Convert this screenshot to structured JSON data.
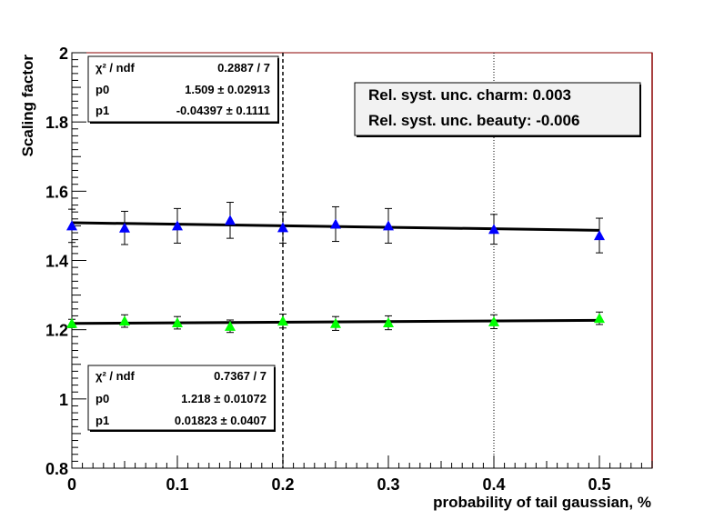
{
  "chart_data": {
    "type": "scatter",
    "xlabel": "probability of tail gaussian, %",
    "ylabel": "Scaling factor",
    "xlim": [
      0,
      0.55
    ],
    "ylim": [
      0.8,
      2.0
    ],
    "x_ticks": [
      "0",
      "0.1",
      "0.2",
      "0.3",
      "0.4",
      "0.5"
    ],
    "y_ticks": [
      "0.8",
      "1",
      "1.2",
      "1.4",
      "1.6",
      "1.8",
      "2"
    ],
    "grid": false,
    "vertical_lines": [
      {
        "x": 0.2,
        "style": "dashed"
      },
      {
        "x": 0.4,
        "style": "dotted"
      }
    ],
    "series": [
      {
        "color": "#0000ff",
        "marker": "triangle",
        "points": [
          {
            "x": 0.0,
            "y": 1.5,
            "err": 0.048
          },
          {
            "x": 0.05,
            "y": 1.494,
            "err": 0.048
          },
          {
            "x": 0.1,
            "y": 1.5,
            "err": 0.05
          },
          {
            "x": 0.15,
            "y": 1.516,
            "err": 0.052
          },
          {
            "x": 0.2,
            "y": 1.495,
            "err": 0.045
          },
          {
            "x": 0.25,
            "y": 1.505,
            "err": 0.05
          },
          {
            "x": 0.3,
            "y": 1.5,
            "err": 0.05
          },
          {
            "x": 0.4,
            "y": 1.49,
            "err": 0.043
          },
          {
            "x": 0.5,
            "y": 1.472,
            "err": 0.05
          }
        ],
        "fit": {
          "p0": 1.509,
          "p1": -0.04397
        }
      },
      {
        "color": "#00ff00",
        "marker": "triangle",
        "points": [
          {
            "x": 0.0,
            "y": 1.218,
            "err": 0.012
          },
          {
            "x": 0.05,
            "y": 1.225,
            "err": 0.018
          },
          {
            "x": 0.1,
            "y": 1.22,
            "err": 0.018
          },
          {
            "x": 0.15,
            "y": 1.21,
            "err": 0.018
          },
          {
            "x": 0.2,
            "y": 1.225,
            "err": 0.02
          },
          {
            "x": 0.25,
            "y": 1.218,
            "err": 0.02
          },
          {
            "x": 0.3,
            "y": 1.22,
            "err": 0.02
          },
          {
            "x": 0.4,
            "y": 1.223,
            "err": 0.02
          },
          {
            "x": 0.5,
            "y": 1.233,
            "err": 0.018
          }
        ],
        "fit": {
          "p0": 1.218,
          "p1": 0.01823
        }
      }
    ],
    "stat_boxes": [
      {
        "rows": [
          {
            "label": "χ² / ndf",
            "value": "0.2887 / 7"
          },
          {
            "label": "p0",
            "value": "1.509 ± 0.02913"
          },
          {
            "label": "p1",
            "value": "-0.04397 ± 0.1111"
          }
        ]
      },
      {
        "rows": [
          {
            "label": "χ² / ndf",
            "value": "0.7367 / 7"
          },
          {
            "label": "p0",
            "value": "1.218 ± 0.01072"
          },
          {
            "label": "p1",
            "value": "0.01823 ± 0.0407"
          }
        ]
      }
    ],
    "annotation": {
      "lines": [
        "Rel. syst. unc. charm: 0.003",
        "Rel. syst. unc. beauty: -0.006"
      ]
    }
  }
}
